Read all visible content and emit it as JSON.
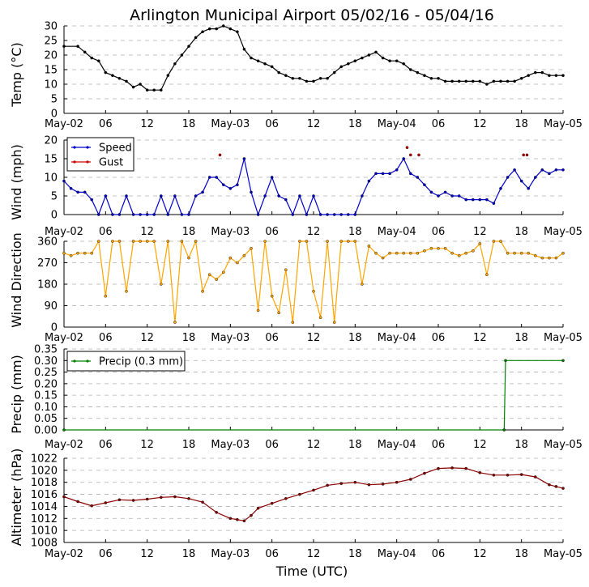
{
  "title": "Arlington Municipal Airport 05/02/16 - 05/04/16",
  "xlabel": "Time (UTC)",
  "x_tick_labels": [
    "May-02",
    "06",
    "12",
    "18",
    "May-03",
    "06",
    "12",
    "18",
    "May-04",
    "06",
    "12",
    "18",
    "May-05"
  ],
  "x_range_hours": [
    0,
    72
  ],
  "colors": {
    "temp": "#000000",
    "speed": "#0000cc",
    "gust": "#cc0000",
    "direction": "#ffa500",
    "precip": "#008000",
    "altimeter": "#8b0000",
    "grid": "#b0b0b0"
  },
  "chart_data": [
    {
      "type": "line",
      "id": "temp",
      "ylabel": "Temp ($^{\\circ}$C)",
      "ylabel_display": "Temp (°C)",
      "ylim": [
        0,
        30
      ],
      "yticks": [
        "0",
        "5",
        "10",
        "15",
        "20",
        "25",
        "30"
      ],
      "series": [
        {
          "name": "Temp",
          "values": [
            [
              0,
              23
            ],
            [
              2,
              23
            ],
            [
              3,
              21
            ],
            [
              4,
              19
            ],
            [
              5,
              18
            ],
            [
              6,
              14
            ],
            [
              7,
              13
            ],
            [
              8,
              12
            ],
            [
              9,
              11
            ],
            [
              10,
              9
            ],
            [
              11,
              10
            ],
            [
              12,
              8
            ],
            [
              13,
              8
            ],
            [
              14,
              8
            ],
            [
              15,
              13
            ],
            [
              16,
              17
            ],
            [
              17,
              20
            ],
            [
              18,
              23
            ],
            [
              19,
              26
            ],
            [
              20,
              28
            ],
            [
              21,
              29
            ],
            [
              22,
              29
            ],
            [
              23,
              30
            ],
            [
              24,
              29
            ],
            [
              25,
              28
            ],
            [
              26,
              22
            ],
            [
              27,
              19
            ],
            [
              28,
              18
            ],
            [
              29,
              17
            ],
            [
              30,
              16
            ],
            [
              31,
              14
            ],
            [
              32,
              13
            ],
            [
              33,
              12
            ],
            [
              34,
              12
            ],
            [
              35,
              11
            ],
            [
              36,
              11
            ],
            [
              37,
              12
            ],
            [
              38,
              12
            ],
            [
              39,
              14
            ],
            [
              40,
              16
            ],
            [
              41,
              17
            ],
            [
              42,
              18
            ],
            [
              43,
              19
            ],
            [
              44,
              20
            ],
            [
              45,
              21
            ],
            [
              46,
              19
            ],
            [
              47,
              18
            ],
            [
              48,
              18
            ],
            [
              49,
              17
            ],
            [
              50,
              15
            ],
            [
              51,
              14
            ],
            [
              52,
              13
            ],
            [
              53,
              12
            ],
            [
              54,
              12
            ],
            [
              55,
              11
            ],
            [
              56,
              11
            ],
            [
              57,
              11
            ],
            [
              58,
              11
            ],
            [
              59,
              11
            ],
            [
              60,
              11
            ],
            [
              61,
              10
            ],
            [
              62,
              11
            ],
            [
              63,
              11
            ],
            [
              64,
              11
            ],
            [
              65,
              11
            ],
            [
              66,
              12
            ],
            [
              67,
              13
            ],
            [
              68,
              14
            ],
            [
              69,
              14
            ],
            [
              70,
              13
            ],
            [
              71,
              13
            ],
            [
              72,
              13
            ]
          ]
        }
      ]
    },
    {
      "type": "line",
      "id": "wind",
      "ylabel": "Wind (mph)",
      "ylim": [
        0,
        20
      ],
      "yticks": [
        "0",
        "5",
        "10",
        "15",
        "20"
      ],
      "legend": [
        "Speed",
        "Gust"
      ],
      "series": [
        {
          "name": "Speed",
          "values": [
            [
              0,
              9
            ],
            [
              1,
              7
            ],
            [
              2,
              6
            ],
            [
              3,
              6
            ],
            [
              4,
              4
            ],
            [
              5,
              0
            ],
            [
              6,
              5
            ],
            [
              7,
              0
            ],
            [
              8,
              0
            ],
            [
              9,
              5
            ],
            [
              10,
              0
            ],
            [
              11,
              0
            ],
            [
              12,
              0
            ],
            [
              13,
              0
            ],
            [
              14,
              5
            ],
            [
              15,
              0
            ],
            [
              16,
              5
            ],
            [
              17,
              0
            ],
            [
              18,
              0
            ],
            [
              19,
              5
            ],
            [
              20,
              6
            ],
            [
              21,
              10
            ],
            [
              22,
              10
            ],
            [
              23,
              8
            ],
            [
              24,
              7
            ],
            [
              25,
              8
            ],
            [
              26,
              15
            ],
            [
              27,
              6
            ],
            [
              28,
              0
            ],
            [
              29,
              5
            ],
            [
              30,
              10
            ],
            [
              31,
              5
            ],
            [
              32,
              4
            ],
            [
              33,
              0
            ],
            [
              34,
              5
            ],
            [
              35,
              0
            ],
            [
              36,
              5
            ],
            [
              37,
              0
            ],
            [
              38,
              0
            ],
            [
              39,
              0
            ],
            [
              40,
              0
            ],
            [
              41,
              0
            ],
            [
              42,
              0
            ],
            [
              43,
              5
            ],
            [
              44,
              9
            ],
            [
              45,
              11
            ],
            [
              46,
              11
            ],
            [
              47,
              11
            ],
            [
              48,
              12
            ],
            [
              49,
              15
            ],
            [
              50,
              11
            ],
            [
              51,
              10
            ],
            [
              52,
              8
            ],
            [
              53,
              6
            ],
            [
              54,
              5
            ],
            [
              55,
              6
            ],
            [
              56,
              5
            ],
            [
              57,
              5
            ],
            [
              58,
              4
            ],
            [
              59,
              4
            ],
            [
              60,
              4
            ],
            [
              61,
              4
            ],
            [
              62,
              3
            ],
            [
              63,
              7
            ],
            [
              64,
              10
            ],
            [
              65,
              12
            ],
            [
              66,
              9
            ],
            [
              67,
              7
            ],
            [
              68,
              10
            ],
            [
              69,
              12
            ],
            [
              70,
              11
            ],
            [
              71,
              12
            ],
            [
              72,
              12
            ]
          ]
        },
        {
          "name": "Gust",
          "values": [
            [
              22.5,
              16
            ],
            [
              49.5,
              18
            ],
            [
              50,
              16
            ],
            [
              51.2,
              16
            ],
            [
              66.3,
              16
            ],
            [
              66.8,
              16
            ]
          ]
        }
      ]
    },
    {
      "type": "scatter",
      "id": "direction",
      "ylabel": "Wind Direction",
      "ylim": [
        0,
        360
      ],
      "yticks": [
        "0",
        "90",
        "180",
        "270",
        "360"
      ],
      "series": [
        {
          "name": "Direction",
          "values": [
            [
              0,
              310
            ],
            [
              1,
              300
            ],
            [
              2,
              310
            ],
            [
              3,
              310
            ],
            [
              4,
              310
            ],
            [
              5,
              360
            ],
            [
              6,
              130
            ],
            [
              7,
              360
            ],
            [
              8,
              360
            ],
            [
              9,
              150
            ],
            [
              10,
              360
            ],
            [
              11,
              360
            ],
            [
              12,
              360
            ],
            [
              13,
              360
            ],
            [
              14,
              180
            ],
            [
              15,
              360
            ],
            [
              16,
              20
            ],
            [
              17,
              360
            ],
            [
              18,
              290
            ],
            [
              19,
              360
            ],
            [
              20,
              150
            ],
            [
              21,
              220
            ],
            [
              22,
              200
            ],
            [
              23,
              230
            ],
            [
              24,
              290
            ],
            [
              25,
              270
            ],
            [
              26,
              300
            ],
            [
              27,
              330
            ],
            [
              28,
              70
            ],
            [
              29,
              360
            ],
            [
              30,
              130
            ],
            [
              31,
              60
            ],
            [
              32,
              240
            ],
            [
              33,
              20
            ],
            [
              34,
              360
            ],
            [
              35,
              360
            ],
            [
              36,
              150
            ],
            [
              37,
              40
            ],
            [
              38,
              360
            ],
            [
              39,
              20
            ],
            [
              40,
              360
            ],
            [
              41,
              360
            ],
            [
              42,
              360
            ],
            [
              43,
              180
            ],
            [
              44,
              340
            ],
            [
              45,
              310
            ],
            [
              46,
              290
            ],
            [
              47,
              310
            ],
            [
              48,
              310
            ],
            [
              49,
              310
            ],
            [
              50,
              310
            ],
            [
              51,
              310
            ],
            [
              52,
              320
            ],
            [
              53,
              330
            ],
            [
              54,
              330
            ],
            [
              55,
              330
            ],
            [
              56,
              310
            ],
            [
              57,
              300
            ],
            [
              58,
              310
            ],
            [
              59,
              320
            ],
            [
              60,
              350
            ],
            [
              61,
              220
            ],
            [
              62,
              360
            ],
            [
              63,
              360
            ],
            [
              64,
              310
            ],
            [
              65,
              310
            ],
            [
              66,
              310
            ],
            [
              67,
              310
            ],
            [
              68,
              300
            ],
            [
              69,
              290
            ],
            [
              70,
              290
            ],
            [
              71,
              290
            ],
            [
              72,
              310
            ]
          ]
        }
      ]
    },
    {
      "type": "line",
      "id": "precip",
      "ylabel": "Precip (mm)",
      "ylim": [
        0,
        0.35
      ],
      "yticks": [
        "0.00",
        "0.05",
        "0.10",
        "0.15",
        "0.20",
        "0.25",
        "0.30",
        "0.35"
      ],
      "legend": [
        "Precip (0.3 mm)"
      ],
      "series": [
        {
          "name": "Precip (0.3 mm)",
          "values": [
            [
              0,
              0
            ],
            [
              63.5,
              0
            ],
            [
              63.7,
              0.3
            ],
            [
              72,
              0.3
            ]
          ]
        }
      ]
    },
    {
      "type": "line",
      "id": "altimeter",
      "ylabel": "Altimeter (hPa)",
      "ylim": [
        1008,
        1022
      ],
      "yticks": [
        "1008",
        "1010",
        "1012",
        "1014",
        "1016",
        "1018",
        "1020",
        "1022"
      ],
      "series": [
        {
          "name": "Altimeter",
          "values": [
            [
              0,
              1015.6
            ],
            [
              2,
              1014.8
            ],
            [
              4,
              1014.1
            ],
            [
              6,
              1014.6
            ],
            [
              8,
              1015.1
            ],
            [
              10,
              1015.0
            ],
            [
              12,
              1015.2
            ],
            [
              14,
              1015.5
            ],
            [
              16,
              1015.6
            ],
            [
              18,
              1015.3
            ],
            [
              20,
              1014.7
            ],
            [
              22,
              1013.0
            ],
            [
              24,
              1012.0
            ],
            [
              25,
              1011.8
            ],
            [
              26,
              1011.6
            ],
            [
              27,
              1012.5
            ],
            [
              28,
              1013.7
            ],
            [
              30,
              1014.5
            ],
            [
              32,
              1015.3
            ],
            [
              34,
              1016.0
            ],
            [
              36,
              1016.7
            ],
            [
              38,
              1017.5
            ],
            [
              40,
              1017.8
            ],
            [
              42,
              1018.0
            ],
            [
              44,
              1017.6
            ],
            [
              46,
              1017.7
            ],
            [
              48,
              1018.0
            ],
            [
              50,
              1018.5
            ],
            [
              52,
              1019.5
            ],
            [
              54,
              1020.3
            ],
            [
              56,
              1020.4
            ],
            [
              58,
              1020.3
            ],
            [
              60,
              1019.6
            ],
            [
              62,
              1019.2
            ],
            [
              64,
              1019.2
            ],
            [
              66,
              1019.3
            ],
            [
              68,
              1018.9
            ],
            [
              70,
              1017.6
            ],
            [
              71,
              1017.3
            ],
            [
              72,
              1017.0
            ]
          ]
        }
      ]
    }
  ]
}
